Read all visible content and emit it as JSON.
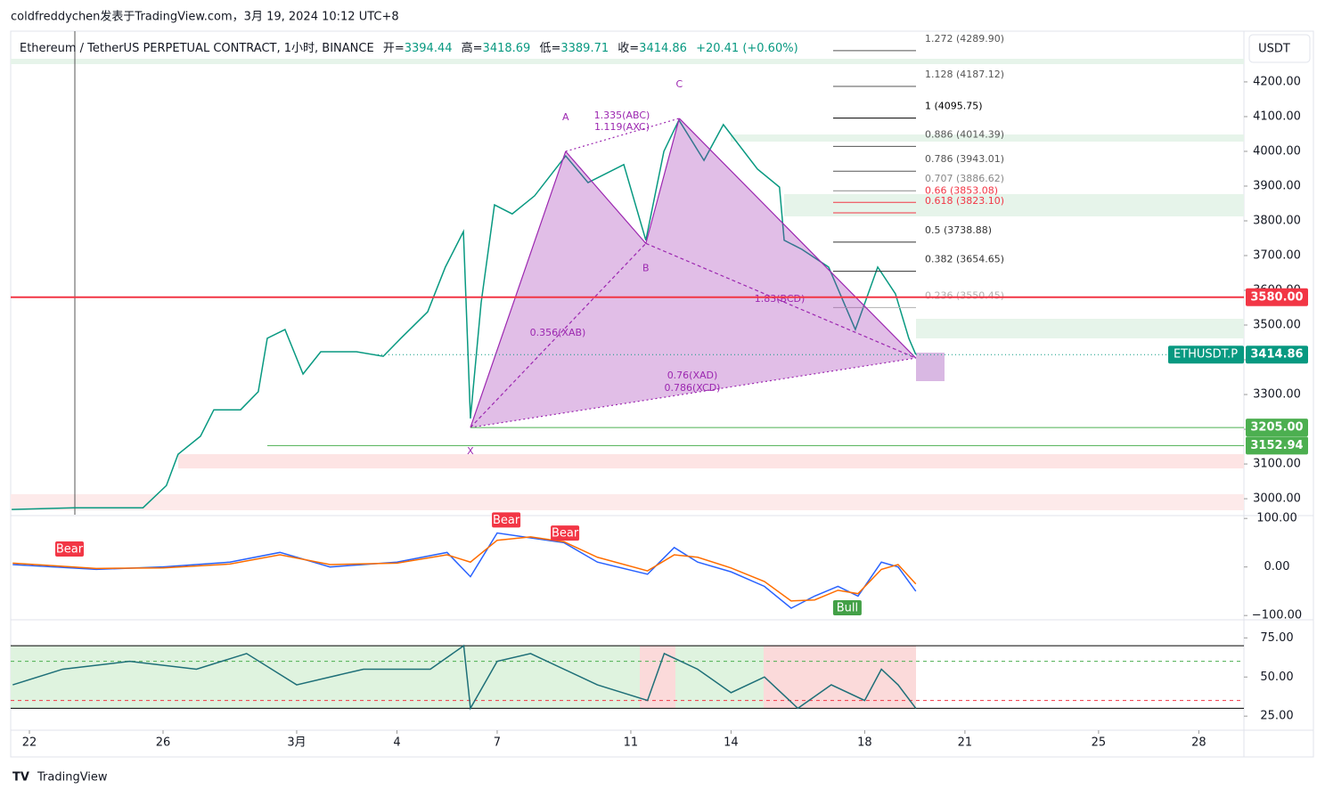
{
  "header": {
    "attribution": "coldfreddychen发表于TradingView.com，3月 19, 2024 10:12 UTC+8",
    "symbol": "Ethereum / TetherUS PERPETUAL CONTRACT, 1小时, BINANCE",
    "ohlc": [
      {
        "label": "开=",
        "value": "3394.44"
      },
      {
        "label": "高=",
        "value": "3418.69"
      },
      {
        "label": "低=",
        "value": "3389.71"
      },
      {
        "label": "收=",
        "value": "3414.86"
      }
    ],
    "change": "+20.41 (+0.60%)",
    "currency": "USDT"
  },
  "chart_data": [
    {
      "type": "line",
      "color": "#089981",
      "x": [
        0.47,
        2.33,
        4.4,
        5.1,
        5.45,
        6.12,
        6.52,
        7.32,
        7.85,
        8.12,
        8.65,
        9.19,
        9.72,
        10.79,
        11.59,
        12.12,
        12.92,
        13.45,
        13.99,
        14.2,
        14.52,
        14.92,
        15.45,
        16.12,
        17.05,
        17.72,
        18.79,
        19.45,
        19.99,
        20.44,
        21.19,
        21.77,
        22.79,
        23.45,
        23.59,
        24.12,
        24.92,
        25.72,
        26.39,
        26.92,
        27.32,
        27.53
      ],
      "values": [
        2969,
        2974,
        2974,
        3038,
        3128,
        3180,
        3256,
        3256,
        3308,
        3462,
        3487,
        3359,
        3423,
        3423,
        3410,
        3462,
        3538,
        3667,
        3769,
        3231,
        3564,
        3846,
        3820,
        3872,
        3987,
        3910,
        3962,
        3744,
        4000,
        4090,
        3974,
        4077,
        3949,
        3897,
        3744,
        3718,
        3667,
        3487,
        3667,
        3590,
        3462,
        3414.86
      ],
      "xlim": [
        0.44,
        37.35
      ],
      "ylim": [
        2954,
        4346
      ],
      "xticks": [
        {
          "value": 1,
          "label": "22"
        },
        {
          "value": 5,
          "label": "26"
        },
        {
          "value": 9,
          "label": "3月"
        },
        {
          "value": 12,
          "label": "4"
        },
        {
          "value": 15,
          "label": "7"
        },
        {
          "value": 19,
          "label": "11"
        },
        {
          "value": 22,
          "label": "14"
        },
        {
          "value": 26,
          "label": "18"
        },
        {
          "value": 29,
          "label": "21"
        },
        {
          "value": 33,
          "label": "25"
        },
        {
          "value": 36,
          "label": "28"
        }
      ],
      "yticks": [
        {
          "value": 3000,
          "label": "3000.00"
        },
        {
          "value": 3100,
          "label": "3100.00"
        },
        {
          "value": 3200,
          "label": "3200.00"
        },
        {
          "value": 3300,
          "label": "3300.00"
        },
        {
          "value": 3400,
          "label": "3400.00"
        },
        {
          "value": 3500,
          "label": "3500.00"
        },
        {
          "value": 3600,
          "label": "3600.00"
        },
        {
          "value": 3700,
          "label": "3700.00"
        },
        {
          "value": 3800,
          "label": "3800.00"
        },
        {
          "value": 3900,
          "label": "3900.00"
        },
        {
          "value": 4000,
          "label": "4000.00"
        },
        {
          "value": 4100,
          "label": "4100.00"
        },
        {
          "value": 4200,
          "label": "4200.00"
        }
      ],
      "price_tags": [
        {
          "value": 3580,
          "label": "3580.00",
          "color": "#f23645"
        },
        {
          "value": 3414.86,
          "label": "3414.86",
          "name": "ETHUSDT.P",
          "color": "#089981"
        },
        {
          "value": 3205,
          "label": "3205.00",
          "color": "#4caf50"
        },
        {
          "value": 3152.94,
          "label": "3152.94",
          "color": "#4caf50"
        }
      ],
      "fib_levels": [
        {
          "value": 4289.9,
          "label": "1.272 (4289.90)",
          "color": "#555555"
        },
        {
          "value": 4187.12,
          "label": "1.128 (4187.12)",
          "color": "#555555"
        },
        {
          "value": 4095.75,
          "label": "1 (4095.75)",
          "color": "#000000"
        },
        {
          "value": 4014.39,
          "label": "0.886 (4014.39)",
          "color": "#555555"
        },
        {
          "value": 3943.01,
          "label": "0.786 (3943.01)",
          "color": "#555555"
        },
        {
          "value": 3886.62,
          "label": "0.707 (3886.62)",
          "color": "#888888"
        },
        {
          "value": 3853.08,
          "label": "0.66 (3853.08)",
          "color": "#f23645"
        },
        {
          "value": 3823.1,
          "label": "0.618 (3823.10)",
          "color": "#f23645"
        },
        {
          "value": 3738.88,
          "label": "0.5 (3738.88)",
          "color": "#333333"
        },
        {
          "value": 3654.65,
          "label": "0.382 (3654.65)",
          "color": "#333333"
        },
        {
          "value": 3550.45,
          "label": "0.236 (3550.45)",
          "color": "#b0b0b0"
        }
      ],
      "pattern": {
        "color": "#9c27b0",
        "points": [
          {
            "label": "X",
            "x": 14.2,
            "y": 3205
          },
          {
            "label": "A",
            "x": 17.05,
            "y": 4000
          },
          {
            "label": "B",
            "x": 19.45,
            "y": 3735
          },
          {
            "label": "C",
            "x": 20.45,
            "y": 4095
          },
          {
            "x": 27.53,
            "y": 3405
          }
        ],
        "ratios": [
          "1.335(ABC)",
          "1.119(AXC)",
          "0.356(XAB)",
          "1.83(BCD)",
          "0.76(XAD)",
          "0.786(XCD)"
        ]
      }
    },
    {
      "type": "line",
      "ylim": [
        -107,
        104
      ],
      "yticks": [
        {
          "value": 100,
          "label": "100.00"
        },
        {
          "value": 0,
          "label": "0.00"
        },
        {
          "value": -100,
          "label": "−100.00"
        }
      ],
      "x": [
        0.5,
        3,
        5,
        7,
        8.5,
        10,
        12,
        13.5,
        14.2,
        15,
        16,
        17,
        18,
        19.5,
        20.3,
        21,
        22,
        23,
        23.8,
        24.5,
        25.2,
        25.8,
        26.5,
        27,
        27.53
      ],
      "series": [
        {
          "color": "#2962ff",
          "values": [
            5,
            -5,
            0,
            10,
            30,
            0,
            10,
            30,
            -20,
            70,
            60,
            50,
            10,
            -15,
            40,
            10,
            -10,
            -40,
            -85,
            -60,
            -40,
            -60,
            10,
            0,
            -50
          ]
        },
        {
          "color": "#ff6d00",
          "values": [
            8,
            -3,
            -2,
            6,
            25,
            5,
            8,
            25,
            10,
            55,
            62,
            52,
            20,
            -8,
            25,
            20,
            -2,
            -30,
            -70,
            -68,
            -48,
            -55,
            -5,
            5,
            -35
          ]
        }
      ],
      "signals": [
        {
          "label": "Bear",
          "x": 2.2,
          "y": 36,
          "color": "#f23645"
        },
        {
          "label": "Bear",
          "x": 15.27,
          "y": 96,
          "color": "#f23645"
        },
        {
          "label": "Bear",
          "x": 17.03,
          "y": 69,
          "color": "#f23645"
        },
        {
          "label": "Bull",
          "x": 25.48,
          "y": -85,
          "color": "#43a047"
        }
      ]
    },
    {
      "type": "line",
      "ylim": [
        16,
        86
      ],
      "yticks": [
        {
          "value": 75,
          "label": "75.00"
        },
        {
          "value": 50,
          "label": "50.00"
        },
        {
          "value": 25,
          "label": "25.00"
        }
      ],
      "levels": [
        {
          "value": 70,
          "color": "#000000"
        },
        {
          "value": 30,
          "color": "#000000"
        },
        {
          "value": 60,
          "color": "#4caf50"
        },
        {
          "value": 35,
          "color": "#f23645"
        }
      ],
      "x": [
        0.5,
        2,
        4,
        6,
        7.5,
        9,
        11,
        13,
        14,
        14.2,
        15,
        16,
        18,
        19.5,
        20,
        21,
        22,
        23,
        24,
        25,
        26,
        26.5,
        27,
        27.53
      ],
      "series": [
        {
          "color": "#1e6f78",
          "values": [
            45,
            55,
            60,
            55,
            65,
            45,
            55,
            55,
            70,
            30,
            60,
            65,
            45,
            35,
            65,
            55,
            40,
            50,
            30,
            45,
            35,
            55,
            45,
            30
          ]
        }
      ]
    }
  ],
  "footer": {
    "brand": "TradingView"
  }
}
